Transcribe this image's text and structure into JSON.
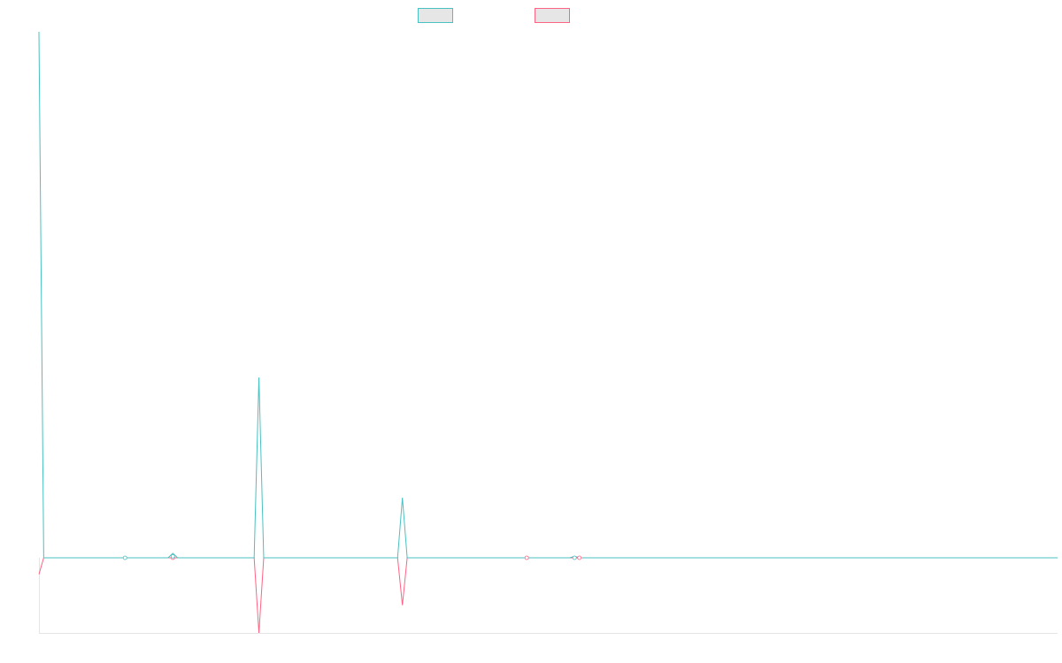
{
  "chart_data": {
    "type": "line",
    "title": "",
    "xlabel": "",
    "ylabel": "",
    "grid": false,
    "legend": "top-center",
    "x_count": 214,
    "ylim": [
      -100,
      700
    ],
    "baseline": 0,
    "series": [
      {
        "color": "#4bc0c0",
        "points": [
          [
            0,
            700
          ],
          [
            1,
            0
          ],
          [
            18,
            0
          ],
          [
            28,
            6
          ],
          [
            46,
            240
          ],
          [
            76,
            80
          ],
          [
            102,
            0
          ],
          [
            112,
            2
          ]
        ]
      },
      {
        "color": "#ff6384",
        "points": [
          [
            0,
            -22
          ],
          [
            1,
            0
          ],
          [
            46,
            -100
          ],
          [
            76,
            -63
          ]
        ]
      }
    ],
    "markers": [
      {
        "x": 18,
        "y": 0
      },
      {
        "x": 28,
        "y": 0
      },
      {
        "x": 28,
        "y": 2
      },
      {
        "x": 102,
        "y": 0
      },
      {
        "x": 112,
        "y": 0
      },
      {
        "x": 113,
        "y": 0
      }
    ]
  },
  "legend": {
    "items": [
      {
        "label": "",
        "color": "#4bc0c0"
      },
      {
        "label": "",
        "color": "#ff6384"
      }
    ]
  },
  "colors": {
    "axis": "#e5e5e5",
    "legend_fill": "#e6e6e6"
  }
}
